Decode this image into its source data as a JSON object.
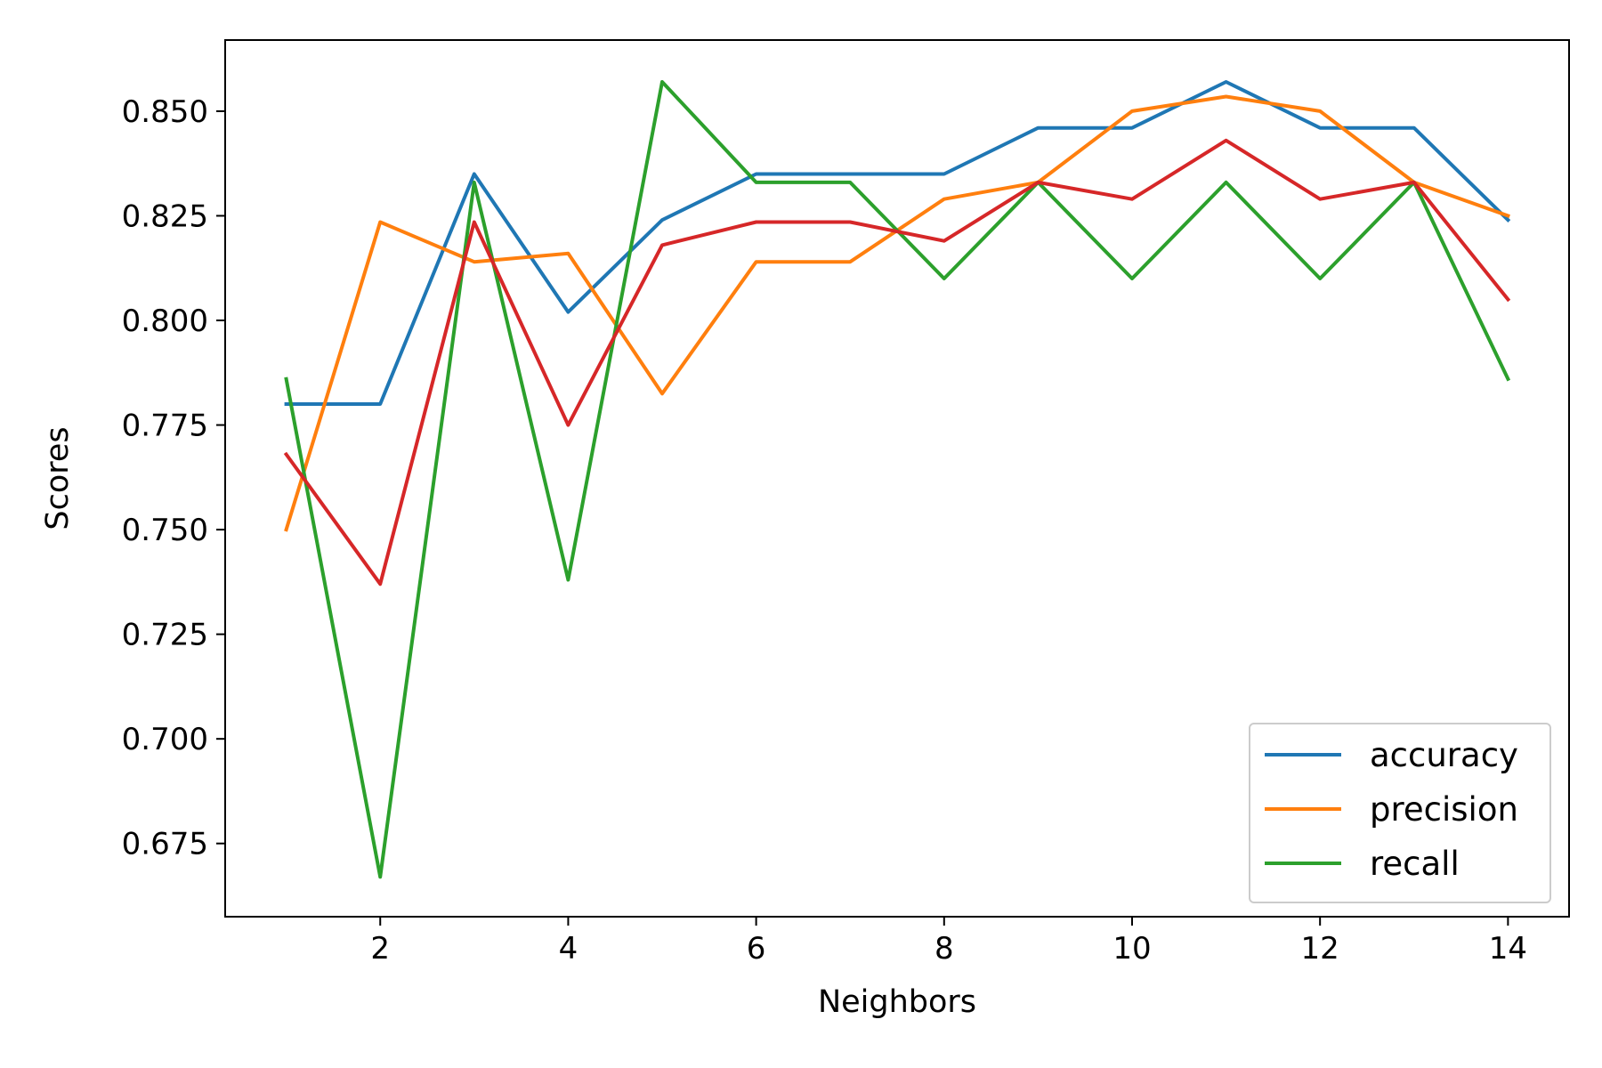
{
  "chart_data": {
    "type": "line",
    "title": "",
    "xlabel": "Neighbors",
    "ylabel": "Scores",
    "x": [
      1,
      2,
      3,
      4,
      5,
      6,
      7,
      8,
      9,
      10,
      11,
      12,
      13,
      14
    ],
    "xlim": [
      0.35,
      14.65
    ],
    "ylim": [
      0.6575,
      0.867
    ],
    "xticks": [
      2,
      4,
      6,
      8,
      10,
      12,
      14
    ],
    "yticks": [
      0.675,
      0.7,
      0.725,
      0.75,
      0.775,
      0.8,
      0.825,
      0.85
    ],
    "xtick_labels": [
      "2",
      "4",
      "6",
      "8",
      "10",
      "12",
      "14"
    ],
    "ytick_labels": [
      "0.675",
      "0.700",
      "0.725",
      "0.750",
      "0.775",
      "0.800",
      "0.825",
      "0.850"
    ],
    "grid": false,
    "legend_position": "lower-right",
    "series": [
      {
        "name": "accuracy",
        "color": "#1f77b4",
        "values": [
          0.78,
          0.78,
          0.835,
          0.802,
          0.824,
          0.835,
          0.835,
          0.835,
          0.846,
          0.846,
          0.857,
          0.846,
          0.846,
          0.824
        ]
      },
      {
        "name": "precision",
        "color": "#ff7f0e",
        "values": [
          0.75,
          0.8235,
          0.814,
          0.816,
          0.7825,
          0.814,
          0.814,
          0.829,
          0.833,
          0.85,
          0.8535,
          0.85,
          0.833,
          0.825
        ]
      },
      {
        "name": "recall",
        "color": "#2ca02c",
        "values": [
          0.786,
          0.667,
          0.833,
          0.738,
          0.857,
          0.833,
          0.833,
          0.81,
          0.833,
          0.81,
          0.833,
          0.81,
          0.833,
          0.786
        ]
      },
      {
        "name": "",
        "color": "#d62728",
        "values": [
          0.768,
          0.737,
          0.8235,
          0.775,
          0.818,
          0.8235,
          0.8235,
          0.819,
          0.833,
          0.829,
          0.843,
          0.829,
          0.833,
          0.805
        ]
      }
    ]
  }
}
